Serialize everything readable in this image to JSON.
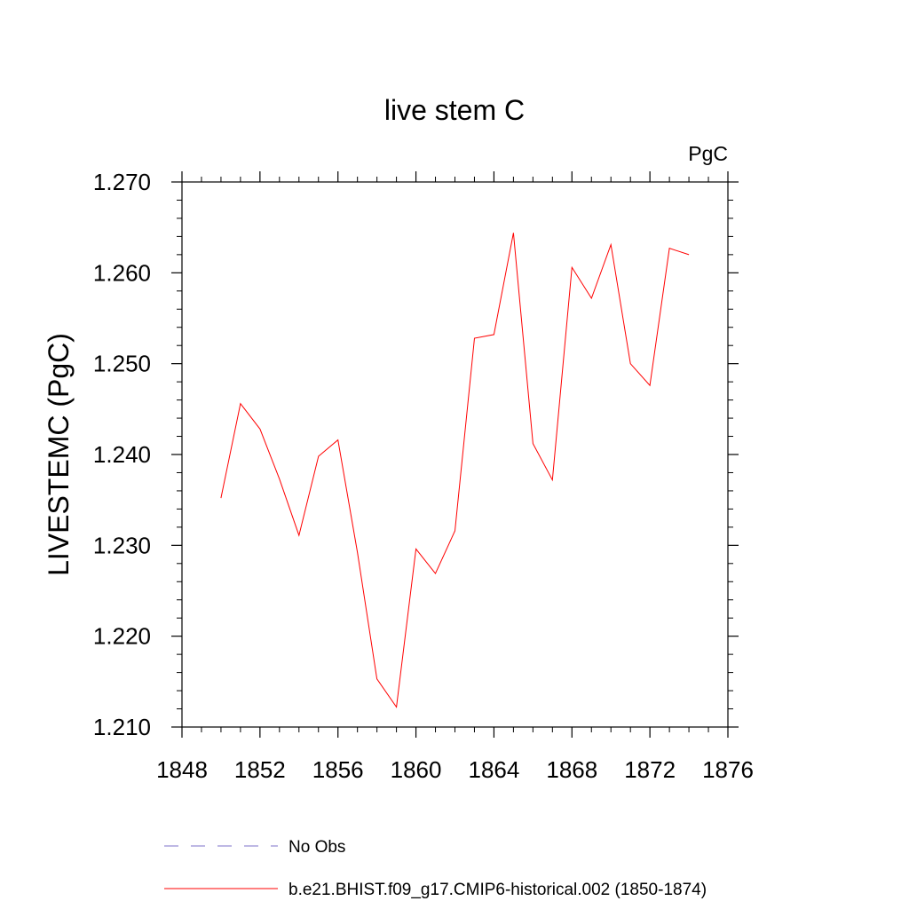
{
  "chart_data": {
    "type": "line",
    "title": "live stem C",
    "units": "PgC",
    "ylabel": "LIVESTEMC  (PgC)",
    "xlabel": "",
    "xlim": [
      1848,
      1876
    ],
    "ylim": [
      1.21,
      1.27
    ],
    "x_major_ticks": [
      1848,
      1852,
      1856,
      1860,
      1864,
      1868,
      1872,
      1876
    ],
    "x_tick_labels": [
      "1848",
      "1852",
      "1856",
      "1860",
      "1864",
      "1868",
      "1872",
      "1876"
    ],
    "y_major_ticks": [
      1.21,
      1.22,
      1.23,
      1.24,
      1.25,
      1.26,
      1.27
    ],
    "y_tick_labels": [
      "1.210",
      "1.220",
      "1.230",
      "1.240",
      "1.250",
      "1.260",
      "1.270"
    ],
    "grid": false,
    "legend_position": "bottom",
    "series": [
      {
        "name": "b.e21.BHIST.f09_g17.CMIP6-historical.002 (1850-1874)",
        "color": "#ff0000",
        "dash": "solid",
        "x": [
          1850,
          1851,
          1852,
          1853,
          1854,
          1855,
          1856,
          1857,
          1858,
          1859,
          1860,
          1861,
          1862,
          1863,
          1864,
          1865,
          1866,
          1867,
          1868,
          1869,
          1870,
          1871,
          1872,
          1873,
          1874
        ],
        "values": [
          1.2352,
          1.2456,
          1.2428,
          1.2373,
          1.2311,
          1.2398,
          1.2416,
          1.2292,
          1.2153,
          1.2122,
          1.2296,
          1.2269,
          1.2316,
          1.2528,
          1.2532,
          1.2644,
          1.2412,
          1.2372,
          1.2606,
          1.2572,
          1.2631,
          1.25,
          1.2476,
          1.2627,
          1.262
        ]
      }
    ],
    "legend": [
      {
        "label": "No Obs",
        "color": "#7d70c9",
        "dash": "dashed"
      },
      {
        "label": "b.e21.BHIST.f09_g17.CMIP6-historical.002 (1850-1874)",
        "color": "#ff0000",
        "dash": "solid"
      }
    ]
  }
}
